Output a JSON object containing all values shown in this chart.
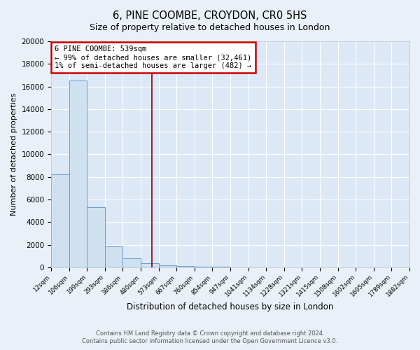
{
  "title": "6, PINE COOMBE, CROYDON, CR0 5HS",
  "subtitle": "Size of property relative to detached houses in London",
  "xlabel": "Distribution of detached houses by size in London",
  "ylabel": "Number of detached properties",
  "bar_color": "#cfe0f0",
  "bar_edge_color": "#6aa0cc",
  "background_color": "#dce8f5",
  "fig_background_color": "#eaf0f8",
  "grid_color": "#ffffff",
  "bin_labels": [
    "12sqm",
    "106sqm",
    "199sqm",
    "293sqm",
    "386sqm",
    "480sqm",
    "573sqm",
    "667sqm",
    "760sqm",
    "854sqm",
    "947sqm",
    "1041sqm",
    "1134sqm",
    "1228sqm",
    "1321sqm",
    "1415sqm",
    "1508sqm",
    "1602sqm",
    "1695sqm",
    "1789sqm",
    "1882sqm"
  ],
  "bar_heights": [
    8200,
    16500,
    5300,
    1850,
    800,
    350,
    200,
    130,
    80,
    50,
    0,
    0,
    0,
    0,
    0,
    0,
    0,
    0,
    0,
    0
  ],
  "ylim": [
    0,
    20000
  ],
  "yticks": [
    0,
    2000,
    4000,
    6000,
    8000,
    10000,
    12000,
    14000,
    16000,
    18000,
    20000
  ],
  "property_line_color": "#8b0000",
  "annotation_box_color": "#ffffff",
  "annotation_box_edge_color": "#cc0000",
  "annotation_line1": "6 PINE COOMBE: 539sqm",
  "annotation_line2": "← 99% of detached houses are smaller (32,461)",
  "annotation_line3": "1% of semi-detached houses are larger (482) →",
  "footer_line1": "Contains HM Land Registry data © Crown copyright and database right 2024.",
  "footer_line2": "Contains public sector information licensed under the Open Government Licence v3.0."
}
